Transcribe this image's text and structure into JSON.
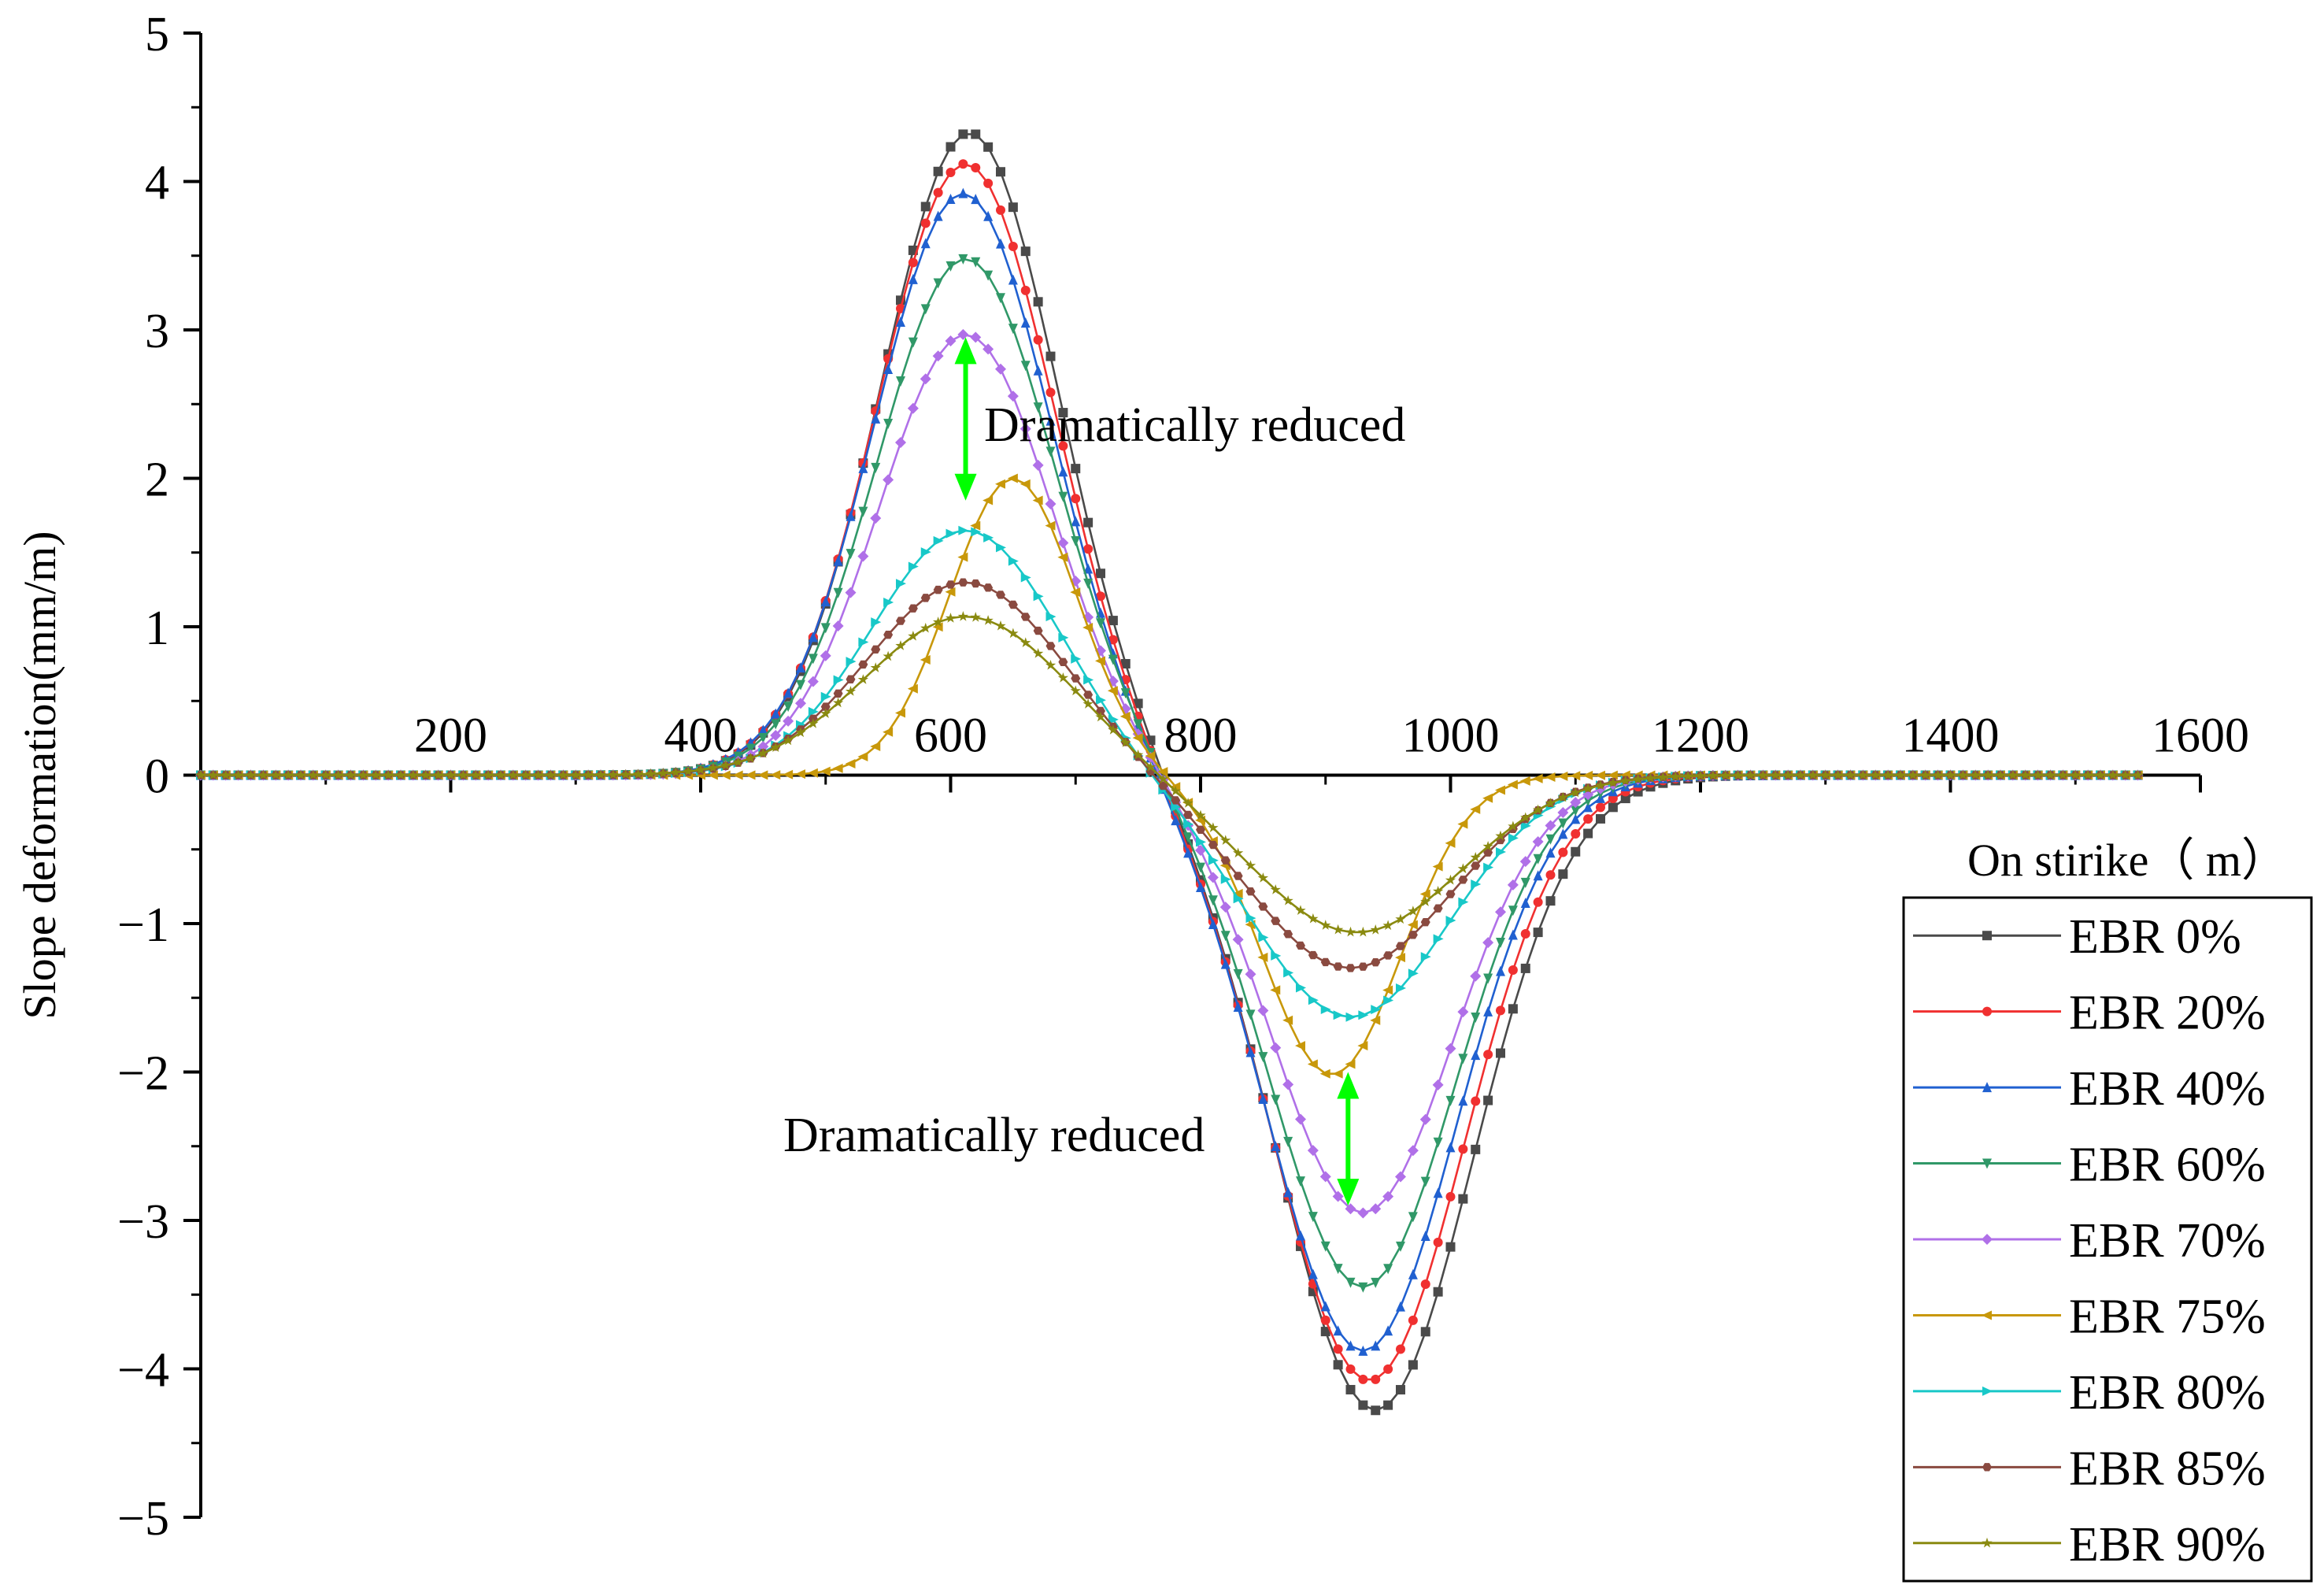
{
  "chart_data": {
    "type": "line",
    "title": "",
    "xlabel": "On stirike（ m）",
    "ylabel": "Slope deformation(mm/m)",
    "xlim": [
      0,
      1600
    ],
    "ylim": [
      -5,
      5
    ],
    "x_ticks": [
      200,
      400,
      600,
      800,
      1000,
      1200,
      1400,
      1600
    ],
    "y_ticks": [
      -5,
      -4,
      -3,
      -2,
      -1,
      0,
      1,
      2,
      3,
      4,
      5
    ],
    "x_range": [
      0,
      1550
    ],
    "sample_step": 10,
    "grid": false,
    "legend_position": "bottom-right",
    "series": [
      {
        "name": "EBR 0%",
        "color": "#4a4a4a",
        "marker": "square",
        "peak": {
          "x": 615,
          "y": 4.33
        },
        "trough": {
          "x": 940,
          "y": -4.28
        },
        "width_pos": 100,
        "width_neg": 110
      },
      {
        "name": "EBR 20%",
        "color": "#f03030",
        "marker": "circle",
        "peak": {
          "x": 612,
          "y": 4.12
        },
        "trough": {
          "x": 935,
          "y": -4.08
        },
        "width_pos": 100,
        "width_neg": 108
      },
      {
        "name": "EBR 40%",
        "color": "#2060d0",
        "marker": "triangle-up",
        "peak": {
          "x": 610,
          "y": 3.92
        },
        "trough": {
          "x": 930,
          "y": -3.88
        },
        "width_pos": 100,
        "width_neg": 106
      },
      {
        "name": "EBR 60%",
        "color": "#309868",
        "marker": "triangle-down",
        "peak": {
          "x": 612,
          "y": 3.48
        },
        "trough": {
          "x": 930,
          "y": -3.45
        },
        "width_pos": 100,
        "width_neg": 104
      },
      {
        "name": "EBR 70%",
        "color": "#b070e8",
        "marker": "diamond",
        "peak": {
          "x": 612,
          "y": 2.97
        },
        "trough": {
          "x": 930,
          "y": -2.95
        },
        "width_pos": 98,
        "width_neg": 102
      },
      {
        "name": "EBR 75%",
        "color": "#c8980a",
        "marker": "triangle-left",
        "peak": {
          "x": 650,
          "y": 2.0
        },
        "trough": {
          "x": 905,
          "y": -2.02
        },
        "width_pos": 72,
        "width_neg": 78
      },
      {
        "name": "EBR 80%",
        "color": "#18c8c8",
        "marker": "triangle-right",
        "peak": {
          "x": 612,
          "y": 1.65
        },
        "trough": {
          "x": 920,
          "y": -1.63
        },
        "width_pos": 105,
        "width_neg": 112
      },
      {
        "name": "EBR 85%",
        "color": "#8a4a40",
        "marker": "hexagon",
        "peak": {
          "x": 612,
          "y": 1.3
        },
        "trough": {
          "x": 920,
          "y": -1.3
        },
        "width_pos": 110,
        "width_neg": 115
      },
      {
        "name": "EBR 90%",
        "color": "#8a8a10",
        "marker": "star",
        "peak": {
          "x": 612,
          "y": 1.07
        },
        "trough": {
          "x": 925,
          "y": -1.06
        },
        "width_pos": 115,
        "width_neg": 118
      }
    ],
    "annotations": [
      {
        "text": "Dramatically reduced",
        "arrow_from": {
          "x": 612,
          "y": 2.95
        },
        "arrow_to": {
          "x": 612,
          "y": 1.85
        },
        "color": "#00ff00"
      },
      {
        "text": "Dramatically reduced",
        "arrow_from": {
          "x": 918,
          "y": -2.0
        },
        "arrow_to": {
          "x": 918,
          "y": -2.9
        },
        "color": "#00ff00"
      }
    ]
  }
}
